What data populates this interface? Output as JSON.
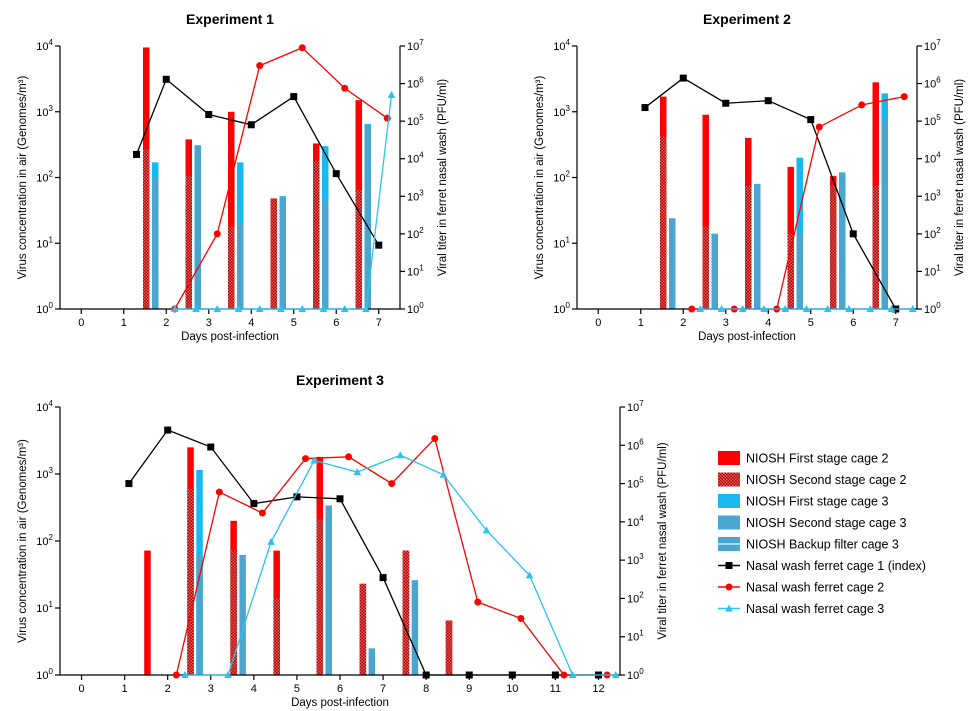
{
  "chart_data": [
    {
      "type": "bar+line",
      "title": "Experiment 1",
      "xlabel": "Days post-infection",
      "ylabel": "Virus concentration in air (Genomes/m³)",
      "ylabel_right": "Viral titer in ferret nasal wash (PFU/ml)",
      "xlim": [
        -0.5,
        7.5
      ],
      "xticks": [
        "0",
        "1",
        "2",
        "3",
        "4",
        "5",
        "6",
        "7"
      ],
      "y_scale": "log",
      "ylim": [
        1,
        10000
      ],
      "y_right_scale": "log",
      "ylim_right": [
        1,
        10000000
      ],
      "bars": [
        {
          "day": 1.6,
          "cage2_first": 9500,
          "cage2_second": 270,
          "cage3_first": 170,
          "cage3_second": 100,
          "cage3_backup": 0
        },
        {
          "day": 2.6,
          "cage2_first": 380,
          "cage2_second": 105,
          "cage3_first": 310,
          "cage3_second": 300,
          "cage3_backup": 0
        },
        {
          "day": 3.6,
          "cage2_first": 1000,
          "cage2_second": 18,
          "cage3_first": 170,
          "cage3_second": 20,
          "cage3_backup": 0
        },
        {
          "day": 4.6,
          "cage2_first": 48,
          "cage2_second": 48,
          "cage3_first": 52,
          "cage3_second": 50,
          "cage3_backup": 0
        },
        {
          "day": 5.6,
          "cage2_first": 330,
          "cage2_second": 180,
          "cage3_first": 300,
          "cage3_second": 45,
          "cage3_backup": 0
        },
        {
          "day": 6.6,
          "cage2_first": 1500,
          "cage2_second": 65,
          "cage3_first": 650,
          "cage3_second": 600,
          "cage3_backup": 0
        }
      ],
      "series": [
        {
          "name": "Nasal wash ferret cage 1 (index)",
          "x": [
            1.3,
            2.0,
            3.0,
            4.0,
            5.0,
            6.0,
            7.0
          ],
          "y": [
            13000,
            1300000,
            150000,
            80000,
            450000,
            4000,
            50
          ]
        },
        {
          "name": "Nasal wash ferret cage 2",
          "x": [
            2.2,
            3.2,
            4.2,
            5.2,
            6.2,
            7.2
          ],
          "y": [
            1,
            100,
            3000000,
            9000000,
            750000,
            120000
          ]
        },
        {
          "name": "Nasal wash ferret cage 3",
          "x": [
            2.2,
            2.7,
            3.2,
            3.7,
            4.2,
            4.7,
            5.2,
            5.7,
            6.2,
            6.7,
            7.3
          ],
          "y": [
            1,
            1,
            1,
            1,
            1,
            1,
            1,
            1,
            1,
            1,
            500000
          ]
        }
      ]
    },
    {
      "type": "bar+line",
      "title": "Experiment 2",
      "xlabel": "Days post-infection",
      "ylabel": "Virus concentration in air (Genomes/m³)",
      "ylabel_right": "Viral titer in ferret nasal wash (PFU/ml)",
      "xlim": [
        -0.5,
        7.5
      ],
      "xticks": [
        "0",
        "1",
        "2",
        "3",
        "4",
        "5",
        "6",
        "7"
      ],
      "y_scale": "log",
      "ylim": [
        1,
        10000
      ],
      "y_right_scale": "log",
      "ylim_right": [
        1,
        10000000
      ],
      "bars": [
        {
          "day": 1.6,
          "cage2_first": 1700,
          "cage2_second": 420,
          "cage3_first": 0,
          "cage3_second": 24,
          "cage3_backup": 0
        },
        {
          "day": 2.6,
          "cage2_first": 900,
          "cage2_second": 18,
          "cage3_first": 0,
          "cage3_second": 14,
          "cage3_backup": 0
        },
        {
          "day": 3.6,
          "cage2_first": 400,
          "cage2_second": 75,
          "cage3_first": 0,
          "cage3_second": 80,
          "cage3_backup": 0
        },
        {
          "day": 4.6,
          "cage2_first": 145,
          "cage2_second": 14,
          "cage3_first": 200,
          "cage3_second": 14,
          "cage3_backup": 0
        },
        {
          "day": 5.6,
          "cage2_first": 105,
          "cage2_second": 75,
          "cage3_first": 0,
          "cage3_second": 120,
          "cage3_backup": 0
        },
        {
          "day": 6.6,
          "cage2_first": 2800,
          "cage2_second": 75,
          "cage3_first": 1900,
          "cage3_second": 700,
          "cage3_backup": 0
        }
      ],
      "series": [
        {
          "name": "Nasal wash ferret cage 1 (index)",
          "x": [
            1.1,
            2.0,
            3.0,
            4.0,
            5.0,
            6.0,
            7.0
          ],
          "y": [
            230000,
            1400000,
            300000,
            350000,
            110000,
            100,
            1
          ]
        },
        {
          "name": "Nasal wash ferret cage 2",
          "x": [
            2.2,
            3.2,
            4.2,
            5.2,
            6.2,
            7.2
          ],
          "y": [
            1,
            1,
            1,
            70000,
            270000,
            450000
          ]
        },
        {
          "name": "Nasal wash ferret cage 3",
          "x": [
            2.4,
            2.9,
            3.4,
            3.9,
            4.4,
            4.9,
            5.4,
            5.9,
            6.4,
            6.9,
            7.4
          ],
          "y": [
            1,
            1,
            1,
            1,
            1,
            1,
            1,
            1,
            1,
            1,
            1
          ]
        }
      ]
    },
    {
      "type": "bar+line",
      "title": "Experiment 3",
      "xlabel": "Days post-infection",
      "ylabel": "Virus concentration in air (Genomes/m³)",
      "ylabel_right": "Viral titer in ferret nasal wash (PFU/ml)",
      "xlim": [
        -0.5,
        12.5
      ],
      "xticks": [
        "0",
        "1",
        "2",
        "3",
        "4",
        "5",
        "6",
        "7",
        "8",
        "9",
        "10",
        "11",
        "12"
      ],
      "y_scale": "log",
      "ylim": [
        1,
        10000
      ],
      "y_right_scale": "log",
      "ylim_right": [
        1,
        10000000
      ],
      "bars": [
        {
          "day": 1.6,
          "cage2_first": 72,
          "cage2_second": 0,
          "cage3_first": 0,
          "cage3_second": 0,
          "cage3_backup": 0
        },
        {
          "day": 2.6,
          "cage2_first": 2500,
          "cage2_second": 600,
          "cage3_first": 1150,
          "cage3_second": 60,
          "cage3_backup": 0
        },
        {
          "day": 3.6,
          "cage2_first": 200,
          "cage2_second": 72,
          "cage3_first": 0,
          "cage3_second": 62,
          "cage3_backup": 0
        },
        {
          "day": 4.6,
          "cage2_first": 72,
          "cage2_second": 14,
          "cage3_first": 0,
          "cage3_second": 0,
          "cage3_backup": 0
        },
        {
          "day": 5.6,
          "cage2_first": 1800,
          "cage2_second": 210,
          "cage3_first": 0,
          "cage3_second": 340,
          "cage3_backup": 0
        },
        {
          "day": 6.6,
          "cage2_first": 23,
          "cage2_second": 23,
          "cage3_first": 0,
          "cage3_second": 2.5,
          "cage3_backup": 0
        },
        {
          "day": 7.6,
          "cage2_first": 72,
          "cage2_second": 72,
          "cage3_first": 0,
          "cage3_second": 26,
          "cage3_backup": 0
        },
        {
          "day": 8.6,
          "cage2_first": 6.5,
          "cage2_second": 6.5,
          "cage3_first": 0,
          "cage3_second": 0,
          "cage3_backup": 0
        }
      ],
      "series": [
        {
          "name": "Nasal wash ferret cage 1 (index)",
          "x": [
            1.1,
            2.0,
            3.0,
            4.0,
            5.0,
            6.0,
            7.0,
            8.0,
            9.0,
            10.0,
            11.0,
            12.0
          ],
          "y": [
            100000,
            2500000,
            900000,
            30000,
            45000,
            40000,
            350,
            1,
            1,
            1,
            1,
            1
          ]
        },
        {
          "name": "Nasal wash ferret cage 2",
          "x": [
            2.2,
            3.2,
            4.2,
            5.2,
            6.2,
            7.2,
            8.2,
            9.2,
            10.2,
            11.2,
            12.2
          ],
          "y": [
            1,
            60000,
            17000,
            450000,
            500000,
            100000,
            1500000,
            80,
            30,
            1,
            1
          ]
        },
        {
          "name": "Nasal wash ferret cage 3",
          "x": [
            2.4,
            3.4,
            4.4,
            5.4,
            6.4,
            7.4,
            8.4,
            9.4,
            10.4,
            11.4,
            12.4
          ],
          "y": [
            1,
            1,
            3000,
            400000,
            200000,
            550000,
            170000,
            6000,
            400,
            1,
            1
          ]
        }
      ]
    }
  ],
  "legend": {
    "items": [
      "NIOSH First stage cage 2",
      "NIOSH Second stage cage 2",
      "NIOSH First stage cage 3",
      "NIOSH Second stage cage 3",
      "NIOSH Backup filter cage 3",
      "Nasal wash ferret cage 1 (index)",
      "Nasal wash ferret cage 2",
      "Nasal wash ferret cage 3"
    ]
  },
  "colors": {
    "cage2": "#ff0000",
    "cage2_pattern": "#cc1111",
    "cage3": "#19b8ee",
    "cage3_second": "#4aa6cf",
    "index": "#000000",
    "line_cage3": "#29c3f0"
  }
}
